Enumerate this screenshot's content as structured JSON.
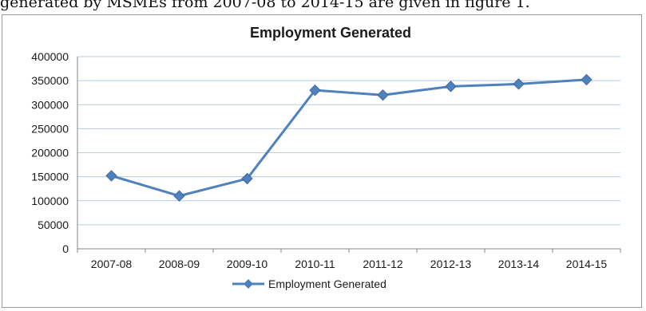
{
  "caption": "generated by MSMEs from 2007-08 to 2014-15 are given in figure 1.",
  "chart_data": {
    "type": "line",
    "title": "Employment Generated",
    "xlabel": "",
    "ylabel": "",
    "categories": [
      "2007-08",
      "2008-09",
      "2009-10",
      "2010-11",
      "2011-12",
      "2012-13",
      "2013-14",
      "2014-15"
    ],
    "series": [
      {
        "name": "Employment Generated",
        "values": [
          152000,
          110000,
          146000,
          330000,
          320000,
          338000,
          343000,
          352000
        ],
        "color": "#4f81bd",
        "marker": "diamond"
      }
    ],
    "ylim": [
      0,
      400000
    ],
    "yticks": [
      "0",
      "50000",
      "100000",
      "150000",
      "200000",
      "250000",
      "300000",
      "350000",
      "400000"
    ],
    "grid": true,
    "legend_position": "bottom"
  }
}
